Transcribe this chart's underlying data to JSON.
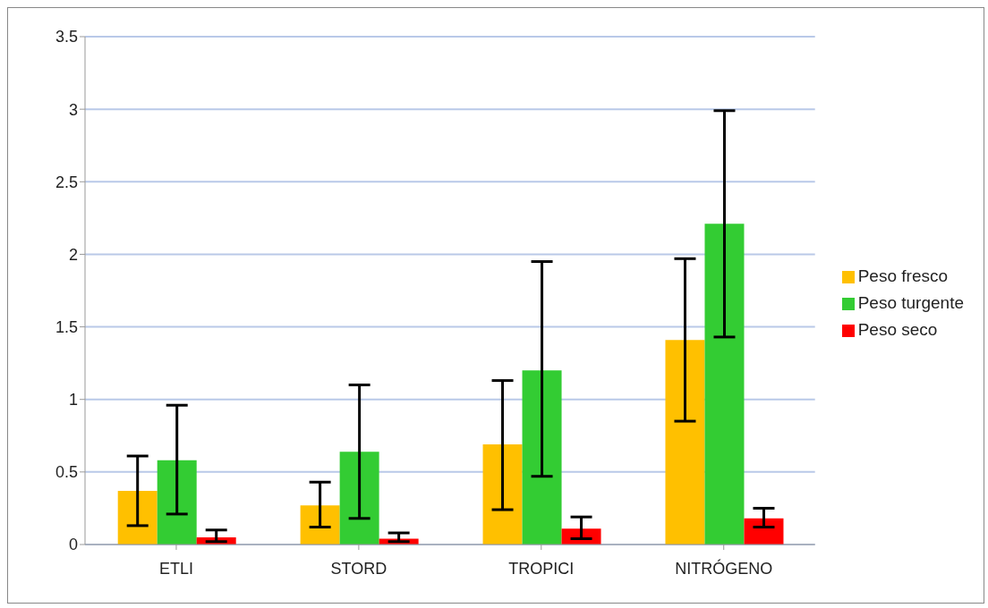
{
  "chart_data": {
    "type": "bar",
    "categories": [
      "ETLI",
      "STORD",
      "TROPICI",
      "NITRÓGENO"
    ],
    "series": [
      {
        "name": "Peso fresco",
        "color": "#ffc000",
        "values": [
          0.37,
          0.27,
          0.69,
          1.41
        ],
        "errors": [
          [
            0.13,
            0.61
          ],
          [
            0.12,
            0.43
          ],
          [
            0.24,
            1.13
          ],
          [
            0.85,
            1.97
          ]
        ]
      },
      {
        "name": "Peso turgente",
        "color": "#33cc33",
        "values": [
          0.58,
          0.64,
          1.2,
          2.21
        ],
        "errors": [
          [
            0.21,
            0.96
          ],
          [
            0.18,
            1.1
          ],
          [
            0.47,
            1.95
          ],
          [
            1.43,
            2.99
          ]
        ]
      },
      {
        "name": "Peso seco",
        "color": "#ff0000",
        "values": [
          0.05,
          0.04,
          0.11,
          0.18
        ],
        "errors": [
          [
            0.02,
            0.1
          ],
          [
            0.02,
            0.08
          ],
          [
            0.04,
            0.19
          ],
          [
            0.12,
            0.25
          ]
        ]
      }
    ],
    "ylim": [
      0,
      3.5
    ],
    "yticks": [
      0,
      0.5,
      1,
      1.5,
      2,
      2.5,
      3,
      3.5
    ],
    "grid": "y",
    "legend": "right"
  }
}
